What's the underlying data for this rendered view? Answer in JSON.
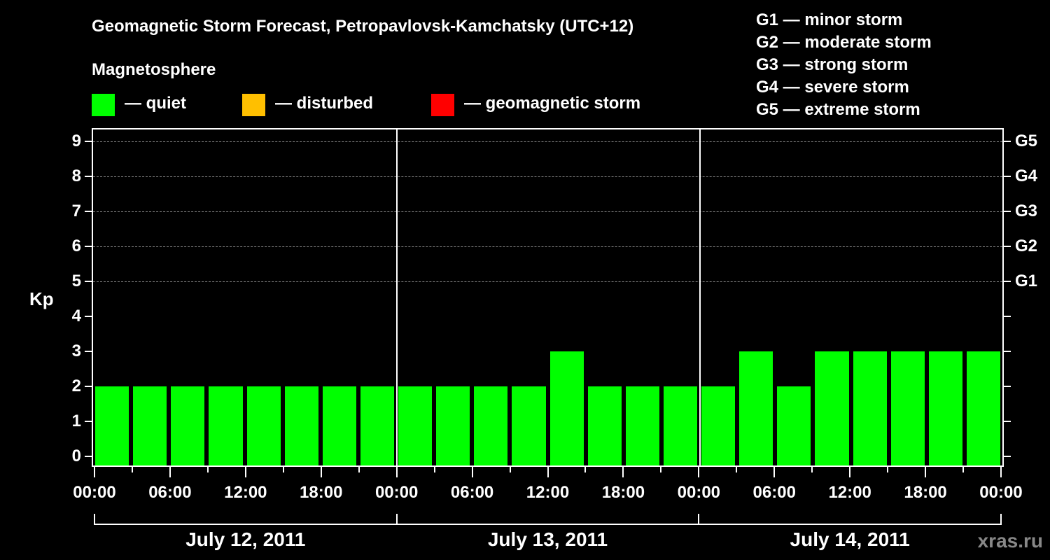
{
  "title": "Geomagnetic Storm Forecast, Petropavlovsk-Kamchatsky (UTC+12)",
  "subtitle": "Magnetosphere",
  "legend": [
    {
      "color": "#00ff00",
      "label": "— quiet"
    },
    {
      "color": "#ffbf00",
      "label": "— disturbed"
    },
    {
      "color": "#ff0000",
      "label": "— geomagnetic storm"
    }
  ],
  "storm_levels": [
    "G1 — minor storm",
    "G2 — moderate storm",
    "G3 — strong storm",
    "G4 — severe storm",
    "G5 — extreme storm"
  ],
  "watermark": "xras.ru",
  "chart_data": {
    "type": "bar",
    "title": "Geomagnetic Storm Forecast, Petropavlovsk-Kamchatsky (UTC+12)",
    "ylabel": "Kp",
    "xlabel": "",
    "ylim": [
      0,
      9
    ],
    "yticks": [
      "0",
      "1",
      "2",
      "3",
      "4",
      "5",
      "6",
      "7",
      "8",
      "9"
    ],
    "right_axis_labels": [
      {
        "kp": 5,
        "label": "G1"
      },
      {
        "kp": 6,
        "label": "G2"
      },
      {
        "kp": 7,
        "label": "G3"
      },
      {
        "kp": 8,
        "label": "G4"
      },
      {
        "kp": 9,
        "label": "G5"
      }
    ],
    "grid": "dashed horizontal at Kp 5-9",
    "xtick_labels": [
      "00:00",
      "06:00",
      "12:00",
      "18:00",
      "00:00",
      "06:00",
      "12:00",
      "18:00",
      "00:00",
      "06:00",
      "12:00",
      "18:00",
      "00:00"
    ],
    "dates": [
      "July 12, 2011",
      "July 13, 2011",
      "July 14, 2011"
    ],
    "categories": [
      "Jul12 00-03",
      "Jul12 03-06",
      "Jul12 06-09",
      "Jul12 09-12",
      "Jul12 12-15",
      "Jul12 15-18",
      "Jul12 18-21",
      "Jul12 21-24",
      "Jul13 00-03",
      "Jul13 03-06",
      "Jul13 06-09",
      "Jul13 09-12",
      "Jul13 12-15",
      "Jul13 15-18",
      "Jul13 18-21",
      "Jul13 21-24",
      "Jul14 00-03",
      "Jul14 03-06",
      "Jul14 06-09",
      "Jul14 09-12",
      "Jul14 12-15",
      "Jul14 15-18",
      "Jul14 18-21",
      "Jul14 21-24"
    ],
    "values": [
      2,
      2,
      2,
      2,
      2,
      2,
      2,
      2,
      2,
      2,
      2,
      2,
      3,
      2,
      2,
      2,
      2,
      3,
      2,
      3,
      3,
      3,
      3,
      3
    ],
    "bar_color": "#00ff00",
    "legend": [
      "quiet",
      "disturbed",
      "geomagnetic storm"
    ]
  }
}
